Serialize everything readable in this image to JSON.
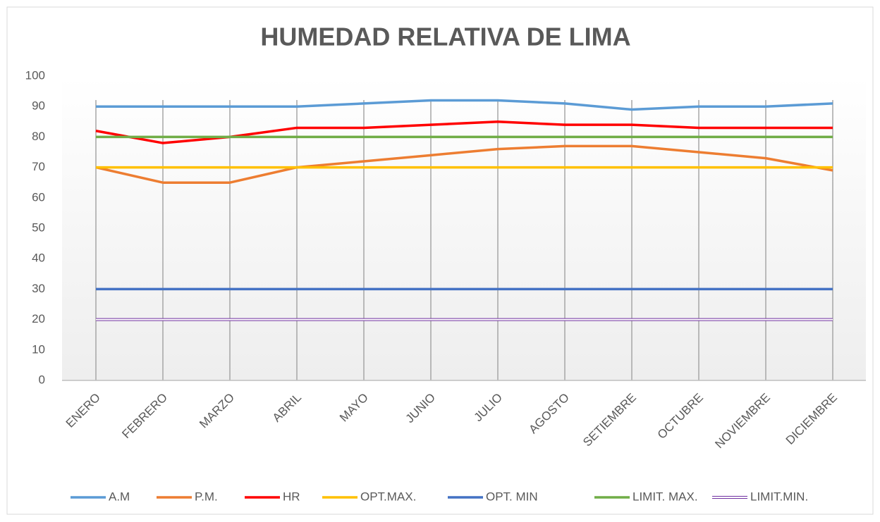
{
  "chart_data": {
    "type": "line",
    "title": "HUMEDAD RELATIVA DE LIMA",
    "categories": [
      "ENERO",
      "FEBRERO",
      "MARZO",
      "ABRIL",
      "MAYO",
      "JUNIO",
      "JULIO",
      "AGOSTO",
      "SETIEMBRE",
      "OCTUBRE",
      "NOVIEMBRE",
      "DICIEMBRE"
    ],
    "series": [
      {
        "name": "A.M",
        "color": "#5b9bd5",
        "values": [
          90,
          90,
          90,
          90,
          91,
          92,
          92,
          91,
          89,
          90,
          90,
          91
        ]
      },
      {
        "name": "P.M.",
        "color": "#ed7d31",
        "values": [
          70,
          65,
          65,
          70,
          72,
          74,
          76,
          77,
          77,
          75,
          73,
          69
        ]
      },
      {
        "name": "HR",
        "color": "#ff0000",
        "values": [
          82,
          78,
          80,
          83,
          83,
          84,
          85,
          84,
          84,
          83,
          83,
          83
        ]
      },
      {
        "name": "OPT.MAX.",
        "color": "#ffc000",
        "values": [
          70,
          70,
          70,
          70,
          70,
          70,
          70,
          70,
          70,
          70,
          70,
          70
        ]
      },
      {
        "name": "OPT. MIN",
        "color": "#4472c4",
        "values": [
          30,
          30,
          30,
          30,
          30,
          30,
          30,
          30,
          30,
          30,
          30,
          30
        ]
      },
      {
        "name": "LIMIT. MAX.",
        "color": "#70ad47",
        "values": [
          80,
          80,
          80,
          80,
          80,
          80,
          80,
          80,
          80,
          80,
          80,
          80
        ]
      },
      {
        "name": "LIMIT.MIN.",
        "color": "#7030a0",
        "line_style": "double",
        "values": [
          20,
          20,
          20,
          20,
          20,
          20,
          20,
          20,
          20,
          20,
          20,
          20
        ]
      }
    ],
    "ylim": [
      0,
      100
    ],
    "yticks": [
      0,
      10,
      20,
      30,
      40,
      50,
      60,
      70,
      80,
      90,
      100
    ],
    "grid": "x",
    "legend": "bottom"
  }
}
